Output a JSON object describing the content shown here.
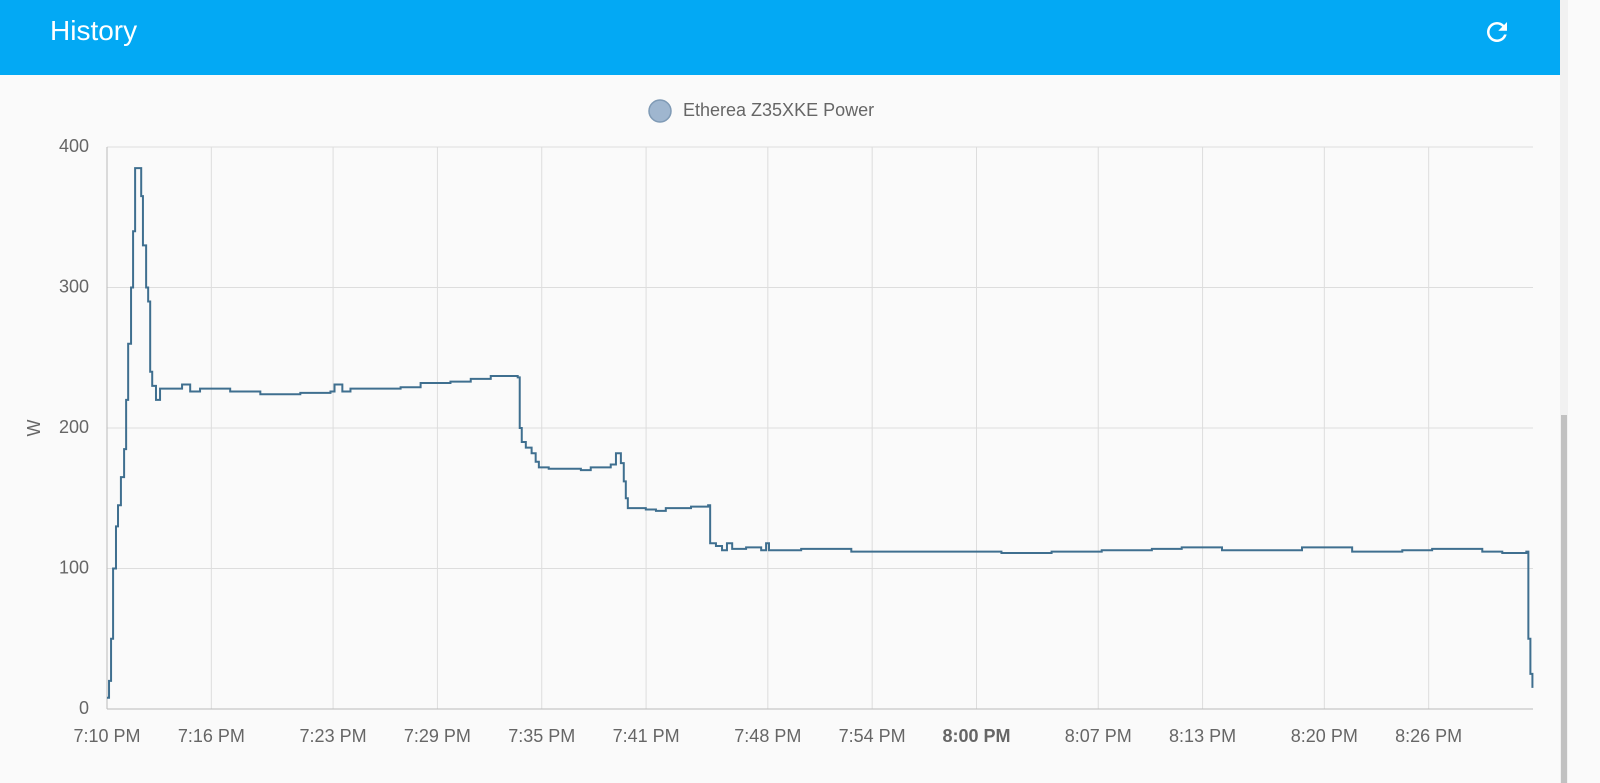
{
  "header": {
    "title": "History"
  },
  "chart_data": {
    "type": "line",
    "step": true,
    "series": [
      {
        "name": "Etherea Z35XKE Power",
        "color": "#3f6f8f",
        "marker_color": "#9fb6cf",
        "values": [
          8,
          20,
          50,
          100,
          130,
          145,
          165,
          185,
          220,
          260,
          300,
          340,
          385,
          385,
          365,
          330,
          300,
          290,
          240,
          230,
          220,
          228,
          228,
          231,
          226,
          228,
          226,
          224,
          225,
          226,
          231,
          226,
          228,
          229,
          232,
          233,
          235,
          237,
          236,
          200,
          190,
          186,
          182,
          176,
          172,
          171,
          170,
          172,
          174,
          182,
          175,
          162,
          150,
          143,
          142,
          141,
          143,
          144,
          145,
          118,
          116,
          113,
          118,
          114,
          115,
          113,
          118,
          113,
          114,
          112,
          112,
          112,
          111,
          112,
          113,
          114,
          115,
          113,
          115,
          112,
          113,
          114,
          112,
          111,
          112,
          50,
          25,
          15
        ]
      }
    ],
    "x": [
      "7:10:00 PM",
      "7:10:07 PM",
      "7:10:14 PM",
      "7:10:21 PM",
      "7:10:31 PM",
      "7:10:38 PM",
      "7:10:48 PM",
      "7:10:59 PM",
      "7:11:06 PM",
      "7:11:13 PM",
      "7:11:23 PM",
      "7:11:30 PM",
      "7:11:37 PM",
      "7:11:51 PM",
      "7:11:58 PM",
      "7:12:04 PM",
      "7:12:15 PM",
      "7:12:22 PM",
      "7:12:29 PM",
      "7:12:36 PM",
      "7:12:49 PM",
      "7:13:03 PM",
      "7:13:58 PM",
      "7:14:19 PM",
      "7:14:47 PM",
      "7:15:21 PM",
      "7:17:05 PM",
      "7:18:49 PM",
      "7:21:07 PM",
      "7:22:51 PM",
      "7:23:05 PM",
      "7:23:32 PM",
      "7:24:00 PM",
      "7:26:53 PM",
      "7:28:02 PM",
      "7:29:45 PM",
      "7:30:55 PM",
      "7:32:04 PM",
      "7:33:37 PM",
      "7:33:44 PM",
      "7:33:51 PM",
      "7:34:05 PM",
      "7:34:25 PM",
      "7:34:39 PM",
      "7:34:50 PM",
      "7:35:24 PM",
      "7:37:15 PM",
      "7:37:49 PM",
      "7:38:58 PM",
      "7:39:16 PM",
      "7:39:33 PM",
      "7:39:43 PM",
      "7:39:50 PM",
      "7:39:57 PM",
      "7:40:59 PM",
      "7:41:34 PM",
      "7:42:08 PM",
      "7:43:35 PM",
      "7:44:34 PM",
      "7:44:41 PM",
      "7:45:01 PM",
      "7:45:22 PM",
      "7:45:39 PM",
      "7:45:57 PM",
      "7:46:45 PM",
      "7:47:37 PM",
      "7:47:54 PM",
      "7:48:04 PM",
      "7:49:55 PM",
      "7:52:48 PM",
      "7:55:41 PM",
      "7:58:33 PM",
      "8:01:26 PM",
      "8:04:19 PM",
      "8:07:12 PM",
      "8:10:05 PM",
      "8:11:48 PM",
      "8:14:07 PM",
      "8:18:43 PM",
      "8:21:36 PM",
      "8:24:29 PM",
      "8:26:12 PM",
      "8:29:05 PM",
      "8:30:14 PM",
      "8:31:37 PM",
      "8:31:44 PM",
      "8:31:51 PM",
      "8:31:58 PM"
    ],
    "xlim": [
      "7:10 PM",
      "8:32 PM"
    ],
    "xticks": [
      "7:10 PM",
      "7:16 PM",
      "7:23 PM",
      "7:29 PM",
      "7:35 PM",
      "7:41 PM",
      "7:48 PM",
      "7:54 PM",
      "8:00 PM",
      "8:07 PM",
      "8:13 PM",
      "8:20 PM",
      "8:26 PM"
    ],
    "ylabel": "W",
    "ylim": [
      0,
      400
    ],
    "yticks": [
      0,
      100,
      200,
      300,
      400
    ],
    "grid": true,
    "legend": "top"
  }
}
